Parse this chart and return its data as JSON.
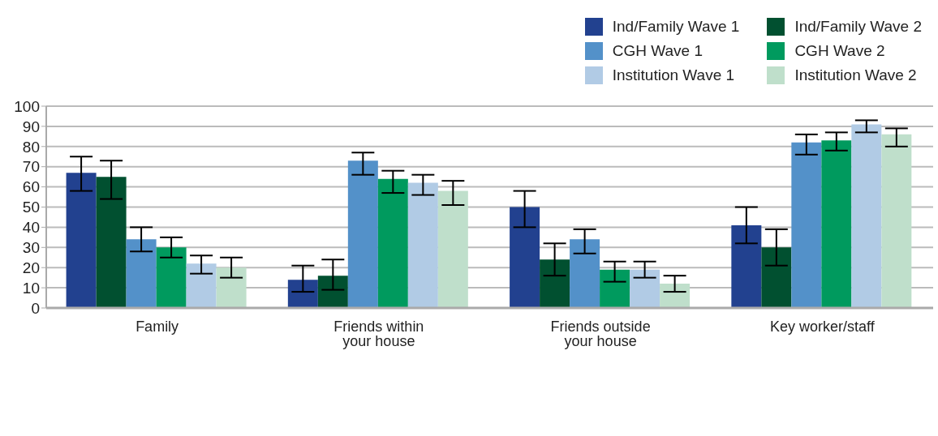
{
  "chart_data": {
    "type": "bar",
    "categories": [
      "Family",
      "Friends within your house",
      "Friends outside your house",
      "Key worker/staff"
    ],
    "series": [
      {
        "name": "Ind/Family Wave 1",
        "color": "#22418f",
        "values": [
          67,
          14,
          50,
          41
        ],
        "errors": [
          [
            58,
            75
          ],
          [
            8,
            21
          ],
          [
            40,
            58
          ],
          [
            32,
            50
          ]
        ]
      },
      {
        "name": "Ind/Family Wave 2",
        "color": "#015030",
        "values": [
          65,
          16,
          24,
          30
        ],
        "errors": [
          [
            54,
            73
          ],
          [
            9,
            24
          ],
          [
            16,
            32
          ],
          [
            21,
            39
          ]
        ]
      },
      {
        "name": "CGH Wave 1",
        "color": "#5391c9",
        "values": [
          34,
          73,
          34,
          82
        ],
        "errors": [
          [
            28,
            40
          ],
          [
            66,
            77
          ],
          [
            27,
            39
          ],
          [
            76,
            86
          ]
        ]
      },
      {
        "name": "CGH Wave 2",
        "color": "#009a5e",
        "values": [
          30,
          64,
          19,
          83
        ],
        "errors": [
          [
            25,
            35
          ],
          [
            57,
            68
          ],
          [
            13,
            23
          ],
          [
            78,
            87
          ]
        ]
      },
      {
        "name": "Institution Wave 1",
        "color": "#b1cbe5",
        "values": [
          22,
          62,
          19,
          91
        ],
        "errors": [
          [
            17,
            26
          ],
          [
            56,
            66
          ],
          [
            15,
            23
          ],
          [
            87,
            93
          ]
        ]
      },
      {
        "name": "Institution Wave 2",
        "color": "#bfdfcb",
        "values": [
          20,
          58,
          12,
          86
        ],
        "errors": [
          [
            15,
            25
          ],
          [
            51,
            63
          ],
          [
            8,
            16
          ],
          [
            80,
            89
          ]
        ]
      }
    ],
    "ylim": [
      0,
      100
    ],
    "yticks": [
      0,
      10,
      20,
      30,
      40,
      50,
      60,
      70,
      80,
      90,
      100
    ],
    "grid": "y",
    "legend": "top right"
  }
}
